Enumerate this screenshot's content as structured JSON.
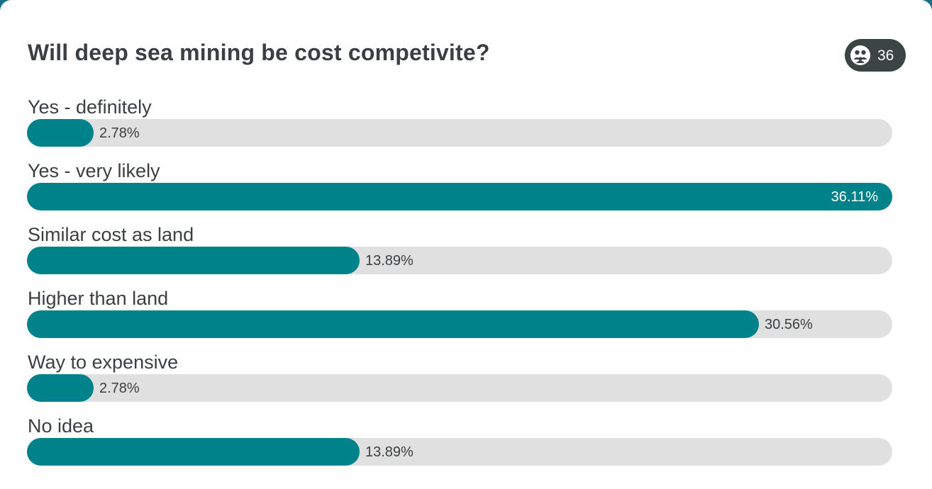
{
  "poll": {
    "title": "Will deep sea mining be cost competivite?",
    "respondents": "36"
  },
  "icons": {
    "respondents": "participants-icon"
  },
  "colors": {
    "bar_fill": "#00828b",
    "bar_track": "#e0e0e0",
    "badge_bg": "#3c4544",
    "text": "#3c3f41"
  },
  "chart_data": {
    "type": "bar",
    "orientation": "horizontal",
    "title": "Will deep sea mining be cost competivite?",
    "categories": [
      "Yes - definitely",
      "Yes - very likely",
      "Similar cost as land",
      "Higher than land",
      "Way to expensive",
      "No idea"
    ],
    "values": [
      2.78,
      36.11,
      13.89,
      30.56,
      2.78,
      13.89
    ],
    "value_labels": [
      "2.78%",
      "36.11%",
      "13.89%",
      "30.56%",
      "2.78%",
      "13.89%"
    ],
    "xlim": [
      0,
      36.11
    ],
    "grid": false,
    "legend": "none"
  }
}
